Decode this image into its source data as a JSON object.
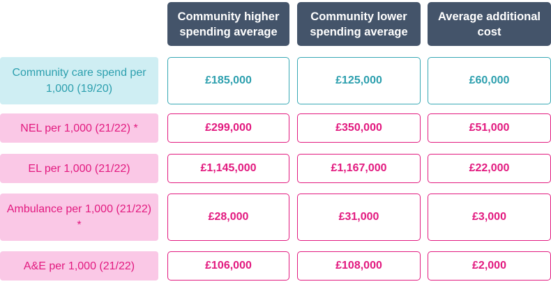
{
  "headers": [
    {
      "label": "Community higher spending average"
    },
    {
      "label": "Community lower spending average"
    },
    {
      "label": "Average additional cost"
    }
  ],
  "rows": [
    {
      "label": "Community care spend per 1,000 (19/20)",
      "values": [
        "£185,000",
        "£125,000",
        "£60,000"
      ],
      "theme": "blue"
    },
    {
      "label": "NEL per 1,000 (21/22) *",
      "values": [
        "£299,000",
        "£350,000",
        "£51,000"
      ],
      "theme": "pink"
    },
    {
      "label": "EL per 1,000 (21/22)",
      "values": [
        "£1,145,000",
        "£1,167,000",
        "£22,000"
      ],
      "theme": "pink"
    },
    {
      "label": "Ambulance per 1,000 (21/22) *",
      "values": [
        "£28,000",
        "£31,000",
        "£3,000"
      ],
      "theme": "pink"
    },
    {
      "label": "A&E per 1,000 (21/22)",
      "values": [
        "£106,000",
        "£108,000",
        "£2,000"
      ],
      "theme": "pink"
    }
  ],
  "colors": {
    "header_bg": "#44546a",
    "blue_accent": "#2c9fae",
    "blue_fill": "#cfeef3",
    "pink_accent": "#e2197f",
    "pink_fill": "#fac8e6"
  }
}
